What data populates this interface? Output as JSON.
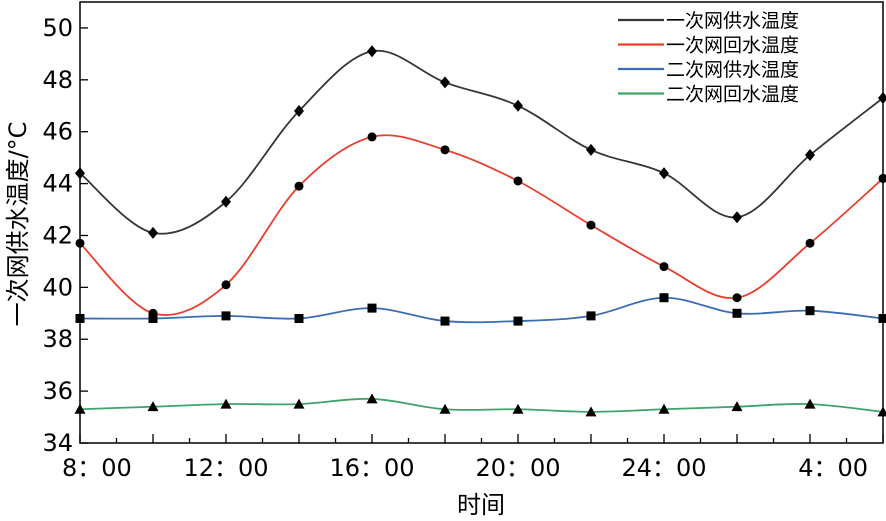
{
  "chart_data": {
    "type": "line",
    "title": "",
    "xlabel": "时间",
    "ylabel": "一次网供水温度/°C",
    "ylim": [
      34,
      51
    ],
    "xlim": [
      0,
      22
    ],
    "yticks": [
      "34",
      "36",
      "38",
      "40",
      "42",
      "44",
      "46",
      "48",
      "50"
    ],
    "xticks": [
      {
        "x": 0,
        "label": "8：00"
      },
      {
        "x": 4,
        "label": "12：00"
      },
      {
        "x": 8,
        "label": "16：00"
      },
      {
        "x": 12,
        "label": "20：00"
      },
      {
        "x": 16,
        "label": "24：00"
      },
      {
        "x": 20,
        "label": "4：00"
      }
    ],
    "grid": false,
    "legend_position": "top-right",
    "x": [
      0,
      2,
      4,
      6,
      8,
      10,
      12,
      14,
      16,
      18,
      20,
      22
    ],
    "series": [
      {
        "name": "一次网供水温度",
        "color": "#3a3434",
        "marker": "diamond",
        "values": [
          44.4,
          42.1,
          43.3,
          46.8,
          49.1,
          47.9,
          47.0,
          45.3,
          44.4,
          42.7,
          45.1,
          47.3
        ]
      },
      {
        "name": "一次网回水温度",
        "color": "#e8402f",
        "marker": "circle",
        "values": [
          41.7,
          39.0,
          40.1,
          43.9,
          45.8,
          45.3,
          44.1,
          42.4,
          40.8,
          39.6,
          41.7,
          44.2
        ]
      },
      {
        "name": "二次网供水温度",
        "color": "#3a6db5",
        "marker": "square",
        "values": [
          38.8,
          38.8,
          38.9,
          38.8,
          39.2,
          38.7,
          38.7,
          38.9,
          39.6,
          39.0,
          39.1,
          38.8
        ]
      },
      {
        "name": "二次网回水温度",
        "color": "#3fa36a",
        "marker": "triangle",
        "values": [
          35.3,
          35.4,
          35.5,
          35.5,
          35.7,
          35.3,
          35.3,
          35.2,
          35.3,
          35.4,
          35.5,
          35.2
        ]
      }
    ]
  }
}
